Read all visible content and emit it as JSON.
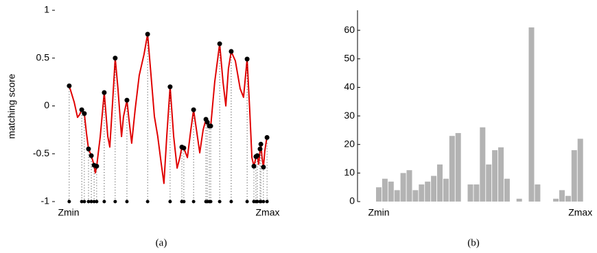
{
  "chart_data": [
    {
      "type": "line",
      "ylabel": "matching score",
      "caption": "(a)",
      "xlim": [
        0,
        100
      ],
      "xticks": [
        {
          "value": 0,
          "label": "Zmin"
        },
        {
          "value": 100,
          "label": "Zmax"
        }
      ],
      "ylim": [
        -1,
        1
      ],
      "yticks": [
        -1,
        -0.5,
        0,
        0.5,
        1
      ],
      "series": [
        {
          "style": "line",
          "color": "#e00000",
          "x": [
            0.3,
            2.8,
            4.5,
            5.5,
            6.6,
            7.9,
            9.0,
            10.0,
            11.4,
            12.8,
            13.4,
            14.1,
            15.9,
            17.9,
            19.7,
            20.7,
            22.1,
            23.4,
            24.8,
            26.6,
            27.6,
            29.3,
            30.3,
            31.7,
            33.4,
            35.5,
            37.9,
            39.7,
            41.4,
            43.1,
            44.8,
            46.6,
            47.9,
            49.3,
            51.0,
            52.8,
            54.5,
            55.9,
            56.9,
            57.9,
            59.7,
            61.4,
            62.8,
            64.5,
            65.9,
            67.6,
            69.0,
            70.0,
            71.4,
            73.4,
            75.9,
            77.6,
            79.0,
            80.3,
            81.7,
            83.8,
            86.2,
            87.9,
            89.7,
            91.0,
            92.1,
            93.1,
            94.1,
            94.8,
            95.5,
            96.2,
            96.6,
            97.2,
            97.9,
            98.6,
            99.7
          ],
          "values": [
            0.21,
            0.04,
            -0.12,
            -0.09,
            -0.04,
            -0.08,
            -0.29,
            -0.45,
            -0.52,
            -0.62,
            -0.7,
            -0.63,
            -0.32,
            0.14,
            -0.32,
            -0.43,
            0.04,
            0.5,
            0.18,
            -0.32,
            -0.11,
            0.06,
            -0.14,
            -0.39,
            -0.04,
            0.32,
            0.54,
            0.75,
            0.32,
            -0.11,
            -0.32,
            -0.61,
            -0.81,
            -0.32,
            0.2,
            -0.32,
            -0.65,
            -0.54,
            -0.43,
            -0.44,
            -0.54,
            -0.25,
            -0.04,
            -0.29,
            -0.49,
            -0.25,
            -0.14,
            -0.19,
            -0.21,
            0.25,
            0.65,
            0.25,
            0.0,
            0.39,
            0.57,
            0.47,
            0.18,
            0.09,
            0.49,
            -0.04,
            -0.54,
            -0.63,
            -0.54,
            -0.52,
            -0.61,
            -0.46,
            -0.39,
            -0.54,
            -0.64,
            -0.47,
            -0.32
          ]
        },
        {
          "style": "markers",
          "color": "#000000",
          "x": [
            0.3,
            6.6,
            7.9,
            10.0,
            11.4,
            12.8,
            14.1,
            17.9,
            23.4,
            29.3,
            39.7,
            51.0,
            56.9,
            57.9,
            62.8,
            69.0,
            69.7,
            70.7,
            71.4,
            75.9,
            81.7,
            89.7,
            93.1,
            94.1,
            94.8,
            96.2,
            96.6,
            97.9,
            99.7
          ],
          "values": [
            0.21,
            -0.04,
            -0.08,
            -0.45,
            -0.52,
            -0.62,
            -0.63,
            0.14,
            0.5,
            0.06,
            0.75,
            0.2,
            -0.43,
            -0.44,
            -0.04,
            -0.14,
            -0.17,
            -0.21,
            -0.21,
            0.65,
            0.57,
            0.49,
            -0.63,
            -0.53,
            -0.52,
            -0.45,
            -0.4,
            -0.64,
            -0.33
          ]
        }
      ]
    },
    {
      "type": "bar",
      "caption": "(b)",
      "color": "#b3b3b3",
      "categories": [
        "Zmin",
        null,
        null,
        null,
        null,
        null,
        null,
        null,
        null,
        null,
        null,
        null,
        null,
        null,
        null,
        null,
        null,
        null,
        null,
        null,
        null,
        null,
        null,
        null,
        null,
        null,
        null,
        null,
        null,
        null,
        null,
        null,
        null,
        "Zmax"
      ],
      "values": [
        5,
        8,
        7,
        4,
        10,
        11,
        4,
        6,
        7,
        9,
        13,
        8,
        23,
        24,
        0,
        6,
        6,
        26,
        13,
        18,
        19,
        8,
        0,
        1,
        0,
        61,
        6,
        0,
        0,
        1,
        4,
        2,
        18,
        22
      ],
      "ylim": [
        0,
        67
      ],
      "yticks": [
        0,
        10,
        20,
        30,
        40,
        50,
        60
      ]
    }
  ]
}
